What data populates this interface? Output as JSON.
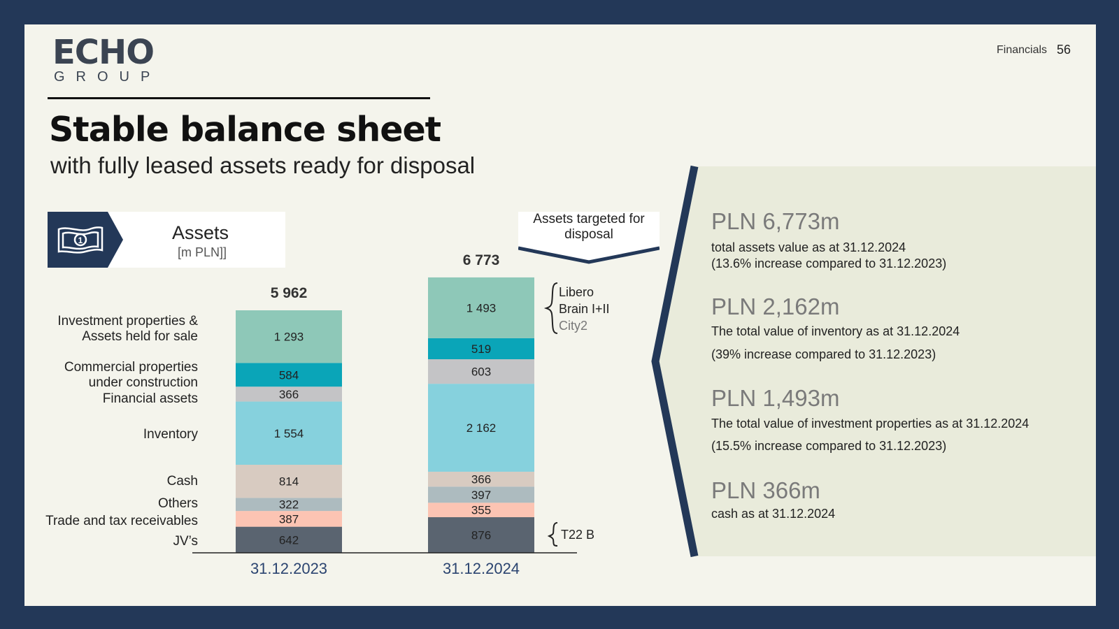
{
  "header": {
    "logo_main": "ECHO",
    "logo_sub": "GROUP",
    "section": "Financials",
    "page": "56"
  },
  "title": "Stable balance sheet",
  "subtitle": "with fully leased assets ready for disposal",
  "assets_label": {
    "title": "Assets",
    "unit": "[m PLN]]"
  },
  "callout": "Assets targeted for disposal",
  "colors": {
    "border": "#233858",
    "panel": "#e9ebdb",
    "accent": "#233858"
  },
  "chart_data": {
    "type": "bar",
    "stacked": true,
    "categories": [
      "31.12.2023",
      "31.12.2024"
    ],
    "totals": [
      "5 962",
      "6 773"
    ],
    "series": [
      {
        "name": "JV’s",
        "values": [
          642,
          876
        ],
        "labels": [
          "642",
          "876"
        ],
        "color": "#5a6470"
      },
      {
        "name": "Trade and tax receivables",
        "values": [
          387,
          355
        ],
        "labels": [
          "387",
          "355"
        ],
        "color": "#fcc4b3"
      },
      {
        "name": "Others",
        "values": [
          322,
          397
        ],
        "labels": [
          "322",
          "397"
        ],
        "color": "#adbbbf"
      },
      {
        "name": "Cash",
        "values": [
          814,
          366
        ],
        "labels": [
          "814",
          "366"
        ],
        "color": "#d8cbc1"
      },
      {
        "name": "Inventory",
        "values": [
          1554,
          2162
        ],
        "labels": [
          "1 554",
          "2 162"
        ],
        "color": "#86d1dd"
      },
      {
        "name": "Financial assets",
        "values": [
          366,
          603
        ],
        "labels": [
          "366",
          "603"
        ],
        "color": "#c4c4c6"
      },
      {
        "name": "Commercial properties under construction",
        "values": [
          584,
          519
        ],
        "labels": [
          "584",
          "519"
        ],
        "color": "#0aa5b8"
      },
      {
        "name": "Investment properties & Assets held for sale",
        "values": [
          1293,
          1493
        ],
        "labels": [
          "1 293",
          "1 493"
        ],
        "color": "#8ec8b8"
      }
    ],
    "legend_labels": [
      [
        "Investment properties &",
        "Assets held for sale"
      ],
      [
        "Commercial properties",
        "under construction"
      ],
      [
        "Financial assets"
      ],
      [
        "Inventory"
      ],
      [
        "Cash"
      ],
      [
        "Others"
      ],
      [
        "Trade and tax receivables"
      ],
      [
        "JV’s"
      ]
    ],
    "brace_top": [
      "Libero",
      "Brain I+II",
      "City2"
    ],
    "brace_bottom": "T22 B"
  },
  "kpis": [
    {
      "value": "PLN 6,773m",
      "desc": "total assets value as at 31.12.2024",
      "note": "(13.6% increase compared to 31.12.2023)"
    },
    {
      "value": "PLN 2,162m",
      "desc": "The total value of inventory as at 31.12.2024",
      "note": "(39% increase compared to 31.12.2023)"
    },
    {
      "value": "PLN 1,493m",
      "desc": "The total value of investment properties as at 31.12.2024",
      "note": "(15.5% increase compared to 31.12.2023)"
    },
    {
      "value": "PLN 366m",
      "desc": "cash as at 31.12.2024",
      "note": ""
    }
  ]
}
